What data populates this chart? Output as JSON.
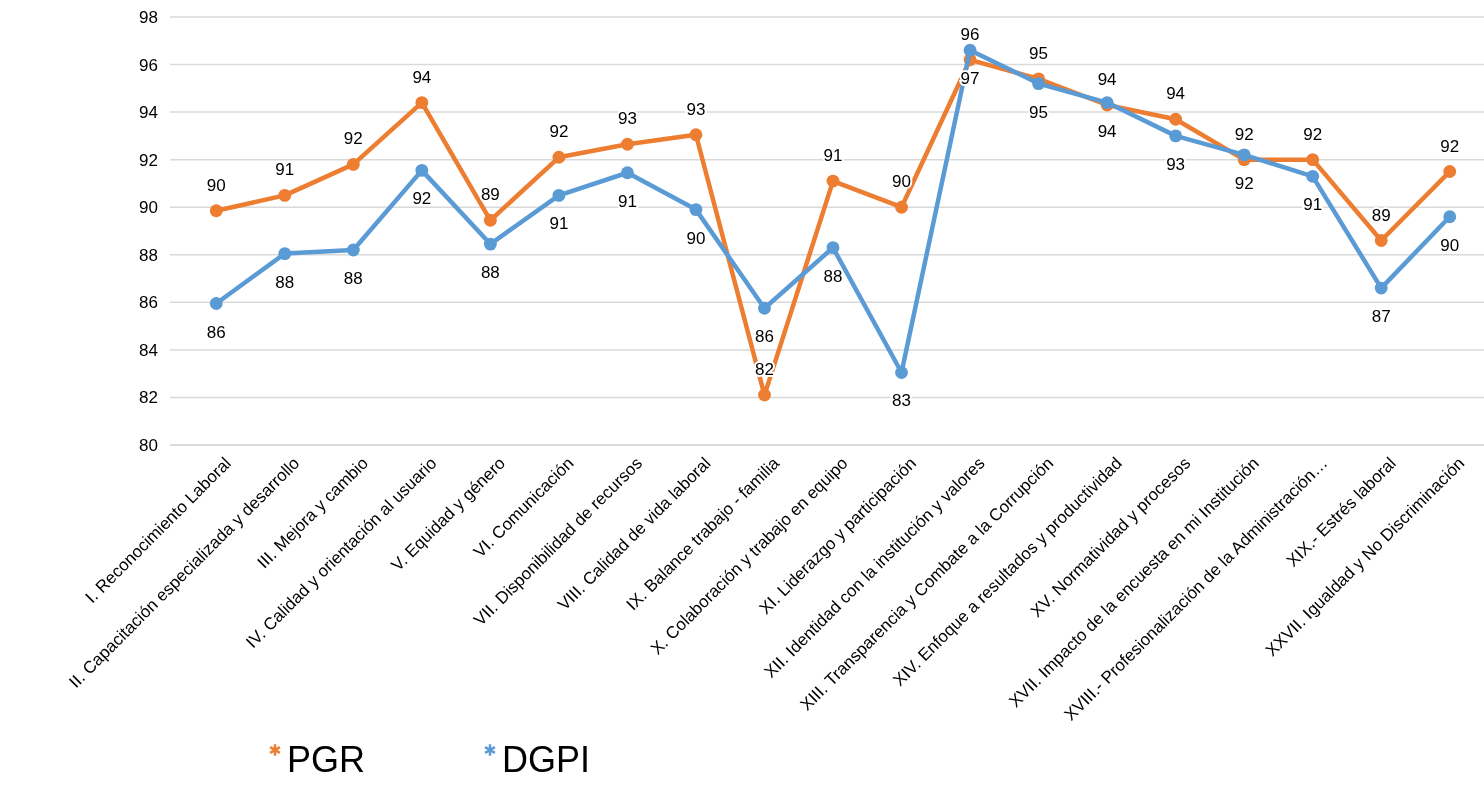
{
  "chart_data": {
    "type": "line",
    "categories": [
      "I. Reconocimiento Laboral",
      "II. Capacitación especializada y desarrollo",
      "III. Mejora y cambio",
      "IV. Calidad y orientación al usuario",
      "V. Equidad y género",
      "VI. Comunicación",
      "VII. Disponibilidad de recursos",
      "VIII. Calidad de vida laboral",
      "IX. Balance trabajo - familia",
      "X. Colaboración y trabajo en equipo",
      "XI. Liderazgo y participación",
      "XII. Identidad con la institución y valores",
      "XIII. Transparencia y Combate a la Corrupción",
      "XIV. Enfoque a resultados y productividad",
      "XV. Normatividad y procesos",
      "XVII. Impacto de la encuesta en mi Institución",
      "XVIII.- Profesionalización de la Administración…",
      "XIX.- Estrés laboral",
      "XXVII. Igualdad y No Discriminación"
    ],
    "series": [
      {
        "name": "PGR",
        "color": "#ed7d31",
        "values": [
          89.85,
          90.5,
          91.8,
          94.4,
          89.45,
          92.1,
          92.65,
          93.05,
          82.1,
          91.1,
          90.0,
          96.2,
          95.4,
          94.3,
          93.7,
          92.0,
          92.0,
          88.6,
          91.5
        ],
        "value_labels": [
          "90",
          "91",
          "92",
          "94",
          "89",
          "92",
          "93",
          "93",
          "82",
          "91",
          "90",
          "96",
          "95",
          "94",
          "94",
          "92",
          "92",
          "89",
          "92"
        ]
      },
      {
        "name": "DGPI",
        "color": "#5b9bd5",
        "values": [
          85.95,
          88.05,
          88.2,
          91.55,
          88.45,
          90.5,
          91.45,
          89.9,
          85.75,
          88.3,
          83.05,
          96.6,
          95.2,
          94.4,
          93.0,
          92.2,
          91.3,
          86.6,
          89.6
        ],
        "value_labels": [
          "86",
          "88",
          "88",
          "92",
          "88",
          "91",
          "91",
          "90",
          "86",
          "88",
          "83",
          "97",
          "95",
          "94",
          "93",
          "92",
          "91",
          "87",
          "90"
        ]
      }
    ],
    "ylim": [
      80,
      98
    ],
    "yticks": [
      80,
      82,
      84,
      86,
      88,
      90,
      92,
      94,
      96,
      98
    ],
    "grid": "y",
    "legend": "bottom",
    "marker": "circle",
    "line_style": "solid"
  }
}
